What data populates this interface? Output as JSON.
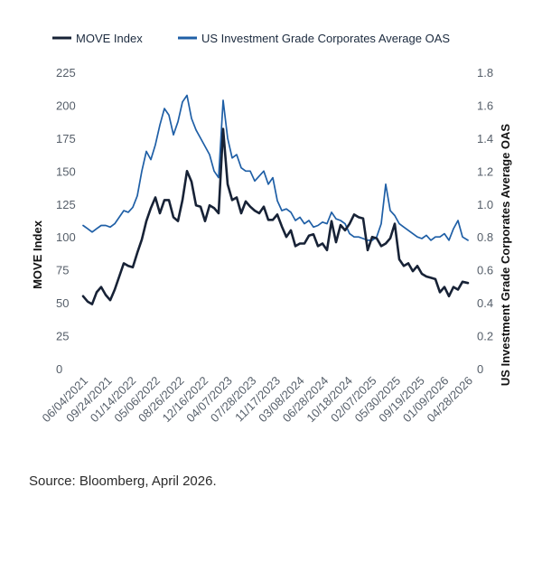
{
  "legend": {
    "move_label": "MOVE Index",
    "oas_label": "US Investment Grade Corporates Average OAS"
  },
  "source": "Source: Bloomberg, April 2026.",
  "colors": {
    "move": "#172236",
    "oas": "#1f5fa6",
    "tick_text": "#555e69"
  },
  "chart_data": {
    "type": "line",
    "title": "",
    "xlabel": "",
    "ylabel": "MOVE Index",
    "y2label": "US Investment Grade Corporates Average OAS",
    "ylim": [
      0,
      225
    ],
    "y2lim": [
      0,
      1.8
    ],
    "yticks": [
      "0",
      "25",
      "50",
      "75",
      "100",
      "125",
      "150",
      "175",
      "200",
      "225"
    ],
    "y2ticks": [
      "0",
      "0.2",
      "0.4",
      "0.6",
      "0.8",
      "1.0",
      "1.2",
      "1.4",
      "1.6",
      "1.8"
    ],
    "xticks": [
      "06/04/2021",
      "09/24/2021",
      "01/14/2022",
      "05/06/2022",
      "08/26/2022",
      "12/16/2022",
      "04/07/2023",
      "07/28/2023",
      "11/17/2023",
      "03/08/2024",
      "06/28/2024",
      "10/18/2024",
      "02/07/2025",
      "05/30/2025",
      "09/19/2025",
      "01/09/2026",
      "04/28/2026"
    ],
    "grid": false,
    "legend_position": "top",
    "series": [
      {
        "name": "MOVE Index",
        "axis": "left",
        "x": [
          "2021-06-04",
          "2021-06-25",
          "2021-07-16",
          "2021-08-06",
          "2021-08-27",
          "2021-09-17",
          "2021-10-08",
          "2021-10-29",
          "2021-11-19",
          "2021-12-10",
          "2021-12-31",
          "2022-01-21",
          "2022-02-11",
          "2022-03-04",
          "2022-03-25",
          "2022-04-15",
          "2022-05-06",
          "2022-05-27",
          "2022-06-17",
          "2022-07-08",
          "2022-07-29",
          "2022-08-19",
          "2022-09-09",
          "2022-09-30",
          "2022-10-21",
          "2022-11-11",
          "2022-12-02",
          "2022-12-23",
          "2023-01-13",
          "2023-02-03",
          "2023-02-24",
          "2023-03-17",
          "2023-04-07",
          "2023-04-28",
          "2023-05-19",
          "2023-06-09",
          "2023-06-30",
          "2023-07-21",
          "2023-08-11",
          "2023-09-01",
          "2023-09-22",
          "2023-10-13",
          "2023-11-03",
          "2023-11-24",
          "2023-12-15",
          "2024-01-05",
          "2024-01-26",
          "2024-02-16",
          "2024-03-08",
          "2024-03-29",
          "2024-04-19",
          "2024-05-10",
          "2024-05-31",
          "2024-06-21",
          "2024-07-12",
          "2024-08-02",
          "2024-08-23",
          "2024-09-13",
          "2024-10-04",
          "2024-10-25",
          "2024-11-15",
          "2024-12-06",
          "2024-12-27",
          "2025-01-17",
          "2025-02-07",
          "2025-02-28",
          "2025-03-21",
          "2025-04-11",
          "2025-05-02",
          "2025-05-23",
          "2025-06-13",
          "2025-07-04",
          "2025-07-25",
          "2025-08-15",
          "2025-09-05",
          "2025-09-26",
          "2025-10-17",
          "2025-11-07",
          "2025-11-28",
          "2025-12-19",
          "2026-01-09",
          "2026-01-30",
          "2026-02-20",
          "2026-03-13",
          "2026-04-03",
          "2026-04-28"
        ],
        "values": [
          55,
          51,
          49,
          58,
          62,
          56,
          52,
          60,
          70,
          80,
          78,
          77,
          88,
          98,
          112,
          122,
          130,
          118,
          128,
          128,
          115,
          112,
          128,
          150,
          142,
          124,
          123,
          112,
          124,
          122,
          118,
          182,
          140,
          128,
          130,
          118,
          127,
          123,
          120,
          118,
          123,
          113,
          113,
          117,
          108,
          100,
          105,
          93,
          95,
          95,
          101,
          102,
          93,
          95,
          90,
          112,
          96,
          109,
          105,
          110,
          117,
          115,
          114,
          90,
          100,
          99,
          93,
          95,
          99,
          110,
          83,
          78,
          80,
          74,
          78,
          72,
          70,
          69,
          68,
          58,
          62,
          55,
          62,
          60,
          66,
          65
        ]
      },
      {
        "name": "US Investment Grade Corporates Average OAS",
        "axis": "right",
        "x": [
          "2021-06-04",
          "2021-06-25",
          "2021-07-16",
          "2021-08-06",
          "2021-08-27",
          "2021-09-17",
          "2021-10-08",
          "2021-10-29",
          "2021-11-19",
          "2021-12-10",
          "2021-12-31",
          "2022-01-21",
          "2022-02-11",
          "2022-03-04",
          "2022-03-25",
          "2022-04-15",
          "2022-05-06",
          "2022-05-27",
          "2022-06-17",
          "2022-07-08",
          "2022-07-29",
          "2022-08-19",
          "2022-09-09",
          "2022-09-30",
          "2022-10-21",
          "2022-11-11",
          "2022-12-02",
          "2022-12-23",
          "2023-01-13",
          "2023-02-03",
          "2023-02-24",
          "2023-03-17",
          "2023-04-07",
          "2023-04-28",
          "2023-05-19",
          "2023-06-09",
          "2023-06-30",
          "2023-07-21",
          "2023-08-11",
          "2023-09-01",
          "2023-09-22",
          "2023-10-13",
          "2023-11-03",
          "2023-11-24",
          "2023-12-15",
          "2024-01-05",
          "2024-01-26",
          "2024-02-16",
          "2024-03-08",
          "2024-03-29",
          "2024-04-19",
          "2024-05-10",
          "2024-05-31",
          "2024-06-21",
          "2024-07-12",
          "2024-08-02",
          "2024-08-23",
          "2024-09-13",
          "2024-10-04",
          "2024-10-25",
          "2024-11-15",
          "2024-12-06",
          "2024-12-27",
          "2025-01-17",
          "2025-02-07",
          "2025-02-28",
          "2025-03-21",
          "2025-04-11",
          "2025-05-02",
          "2025-05-23",
          "2025-06-13",
          "2025-07-04",
          "2025-07-25",
          "2025-08-15",
          "2025-09-05",
          "2025-09-26",
          "2025-10-17",
          "2025-11-07",
          "2025-11-28",
          "2025-12-19",
          "2026-01-09",
          "2026-01-30",
          "2026-02-20",
          "2026-03-13",
          "2026-04-03",
          "2026-04-28"
        ],
        "values": [
          0.87,
          0.85,
          0.83,
          0.85,
          0.87,
          0.87,
          0.86,
          0.88,
          0.92,
          0.96,
          0.95,
          0.98,
          1.05,
          1.2,
          1.32,
          1.27,
          1.36,
          1.48,
          1.58,
          1.54,
          1.42,
          1.5,
          1.62,
          1.66,
          1.52,
          1.45,
          1.4,
          1.35,
          1.3,
          1.2,
          1.16,
          1.63,
          1.4,
          1.28,
          1.3,
          1.22,
          1.2,
          1.2,
          1.14,
          1.17,
          1.2,
          1.12,
          1.16,
          1.02,
          0.96,
          0.97,
          0.95,
          0.9,
          0.92,
          0.88,
          0.9,
          0.86,
          0.87,
          0.89,
          0.88,
          0.95,
          0.91,
          0.9,
          0.88,
          0.82,
          0.8,
          0.8,
          0.79,
          0.78,
          0.78,
          0.8,
          0.88,
          1.12,
          0.96,
          0.93,
          0.88,
          0.86,
          0.84,
          0.82,
          0.8,
          0.79,
          0.81,
          0.78,
          0.8,
          0.8,
          0.82,
          0.78,
          0.85,
          0.9,
          0.8,
          0.78
        ]
      }
    ]
  }
}
